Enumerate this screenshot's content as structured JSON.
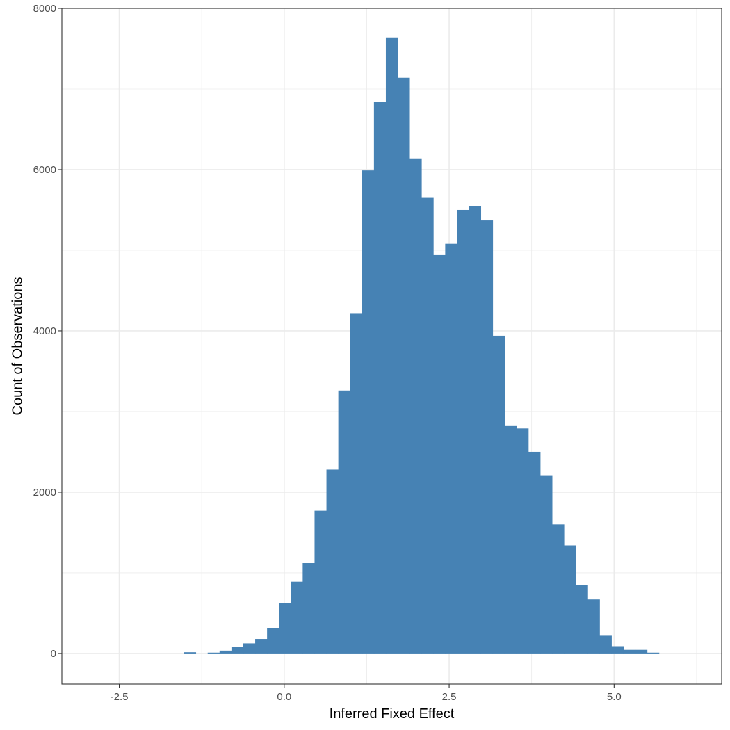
{
  "chart_data": {
    "type": "bar",
    "subtype": "histogram",
    "title": "",
    "xlabel": "Inferred Fixed Effect",
    "ylabel": "Count of Observations",
    "xlim": [
      -3.37,
      6.63
    ],
    "ylim": [
      -380,
      8000
    ],
    "bin_width": 0.18,
    "grid": true,
    "legend": "none",
    "bar_color": "#4682b4",
    "x_ticks": [
      {
        "value": -2.5,
        "label": "-2.5"
      },
      {
        "value": 0.0,
        "label": "0.0"
      },
      {
        "value": 2.5,
        "label": "2.5"
      },
      {
        "value": 5.0,
        "label": "5.0"
      }
    ],
    "x_minor_ticks": [
      -1.25,
      1.25,
      3.75,
      6.25
    ],
    "y_ticks": [
      {
        "value": 0,
        "label": "0"
      },
      {
        "value": 2000,
        "label": "2000"
      },
      {
        "value": 4000,
        "label": "4000"
      },
      {
        "value": 6000,
        "label": "6000"
      },
      {
        "value": 8000,
        "label": "8000"
      }
    ],
    "y_minor_ticks": [
      1000,
      3000,
      5000,
      7000
    ],
    "bins": [
      {
        "x": -1.52,
        "count": 15
      },
      {
        "x": -1.16,
        "count": 10
      },
      {
        "x": -0.98,
        "count": 35
      },
      {
        "x": -0.8,
        "count": 80
      },
      {
        "x": -0.62,
        "count": 125
      },
      {
        "x": -0.44,
        "count": 180
      },
      {
        "x": -0.26,
        "count": 310
      },
      {
        "x": -0.08,
        "count": 625
      },
      {
        "x": 0.1,
        "count": 890
      },
      {
        "x": 0.28,
        "count": 1120
      },
      {
        "x": 0.46,
        "count": 1770
      },
      {
        "x": 0.64,
        "count": 2280
      },
      {
        "x": 0.82,
        "count": 3260
      },
      {
        "x": 1.0,
        "count": 4220
      },
      {
        "x": 1.18,
        "count": 5990
      },
      {
        "x": 1.36,
        "count": 6840
      },
      {
        "x": 1.54,
        "count": 7640
      },
      {
        "x": 1.72,
        "count": 7140
      },
      {
        "x": 1.9,
        "count": 6140
      },
      {
        "x": 2.08,
        "count": 5650
      },
      {
        "x": 2.26,
        "count": 4940
      },
      {
        "x": 2.44,
        "count": 5080
      },
      {
        "x": 2.62,
        "count": 5500
      },
      {
        "x": 2.8,
        "count": 5550
      },
      {
        "x": 2.98,
        "count": 5370
      },
      {
        "x": 3.16,
        "count": 3940
      },
      {
        "x": 3.34,
        "count": 2820
      },
      {
        "x": 3.52,
        "count": 2790
      },
      {
        "x": 3.7,
        "count": 2500
      },
      {
        "x": 3.88,
        "count": 2210
      },
      {
        "x": 4.06,
        "count": 1600
      },
      {
        "x": 4.24,
        "count": 1340
      },
      {
        "x": 4.42,
        "count": 850
      },
      {
        "x": 4.6,
        "count": 670
      },
      {
        "x": 4.78,
        "count": 220
      },
      {
        "x": 4.96,
        "count": 90
      },
      {
        "x": 5.14,
        "count": 45
      },
      {
        "x": 5.32,
        "count": 45
      },
      {
        "x": 5.5,
        "count": 10
      }
    ]
  }
}
